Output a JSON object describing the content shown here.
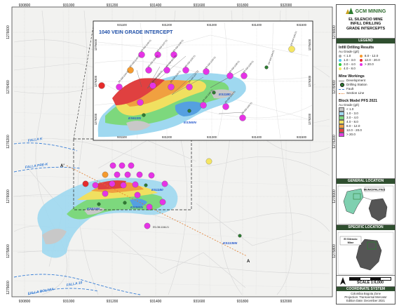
{
  "logo": {
    "text": "GCM MINING"
  },
  "map_title": {
    "line1": "EL SILENCIO MINE",
    "line2": "INFILL DRILLING",
    "line3": "GRADE INTERCEPTS"
  },
  "inset_title": "1040 VEIN GRADE INTERCEPT",
  "axis": {
    "x_ticks": [
      "930800",
      "931000",
      "931200",
      "931400",
      "931600",
      "931800",
      "932000"
    ],
    "y_ticks": [
      "1276600",
      "1276400",
      "1276200",
      "1276000",
      "1275800",
      "1275600"
    ],
    "inset_x_ticks": [
      "931100",
      "931200",
      "931300",
      "931400",
      "931500"
    ],
    "inset_y_ticks": [
      "1276400",
      "1276300",
      "1276200"
    ]
  },
  "legend": {
    "title": "LEGEND",
    "infill_title": "Infill Drilling Results",
    "infill_subtitle": "Au Grade (g/t)",
    "infill_items": [
      {
        "label": "< 1.0",
        "color": "#a8a8a8"
      },
      {
        "label": "1.0 - 3.0",
        "color": "#55c8f0"
      },
      {
        "label": "3.0 - 4.0",
        "color": "#2ecc40"
      },
      {
        "label": "4.0 - 8.0",
        "color": "#f5e663"
      },
      {
        "label": "8.0 - 12.0",
        "color": "#f59a2e"
      },
      {
        "label": "12.0 - 20.0",
        "color": "#e52b2b"
      },
      {
        "label": "> 20.0",
        "color": "#e633e6"
      }
    ],
    "mine_title": "Mine Workings",
    "mine_items": [
      "Development",
      "Drilling Station",
      "Fault",
      "Section Line"
    ],
    "block_title": "Block Model PFS 2021",
    "block_subtitle": "Au Grade (g/t)",
    "block_items": [
      {
        "label": "< 1.0",
        "color": "#c8c8c8"
      },
      {
        "label": "1.0 - 3.0",
        "color": "#9fd8f0"
      },
      {
        "label": "3.0 - 4.0",
        "color": "#7dd87d"
      },
      {
        "label": "4.0 - 8.0",
        "color": "#f0e060"
      },
      {
        "label": "8.0 - 12.0",
        "color": "#f0a040"
      },
      {
        "label": "12.0 - 20.0",
        "color": "#e04040"
      },
      {
        "label": "> 20.0",
        "color": "#e040e0"
      }
    ]
  },
  "general_location": {
    "title": "GENERAL LOCATION",
    "label": "MUNICIPALITIES"
  },
  "specific_location": {
    "title": "SPECIFIC LOCATION",
    "label1": "El Silencio",
    "label2": "Mine"
  },
  "scale": "SCALE 1:6,000",
  "coord": {
    "title": "COORDINATE SYSTEM",
    "line1": "Colombia Bogota Zone",
    "line2": "Projection: Transversal Mercator",
    "line3": "Edition Date: December 2021"
  },
  "faults": [
    "FALLA K",
    "FALLA PRE-K",
    "FALLA 10",
    "FALLA BOLIVIA"
  ],
  "section": {
    "a_start": "A'",
    "a_end": "A"
  },
  "stations": [
    "ES1180",
    "ES610N",
    "ES360N",
    "ES1135N"
  ],
  "inset_stations": [
    "ES1180",
    "ES610N",
    "ES360N"
  ],
  "hole_labels": [
    "ES-GM-1146-21",
    "ES-GM-1147-21",
    "ES-GM-1148-21",
    "ES-GM-1149-21",
    "ES-GM-1150-21",
    "ES-GM-1151-21",
    "ES-GM-1152-21",
    "ES-GM-1153-21",
    "ES-GM-1154-21",
    "ES-GM-1155-21",
    "ES-GM-1156-21",
    "ES-GM-1157-21",
    "ES-GM-1158-21",
    "ES-GM-1159-21",
    "ES-GM-1160-21",
    "ES-GM-1161-21",
    "ES-GM-1162-21",
    "ES-GM-1163-21",
    "ES-GM-1164-21"
  ],
  "main_hole": "ES-GM-1166-21"
}
